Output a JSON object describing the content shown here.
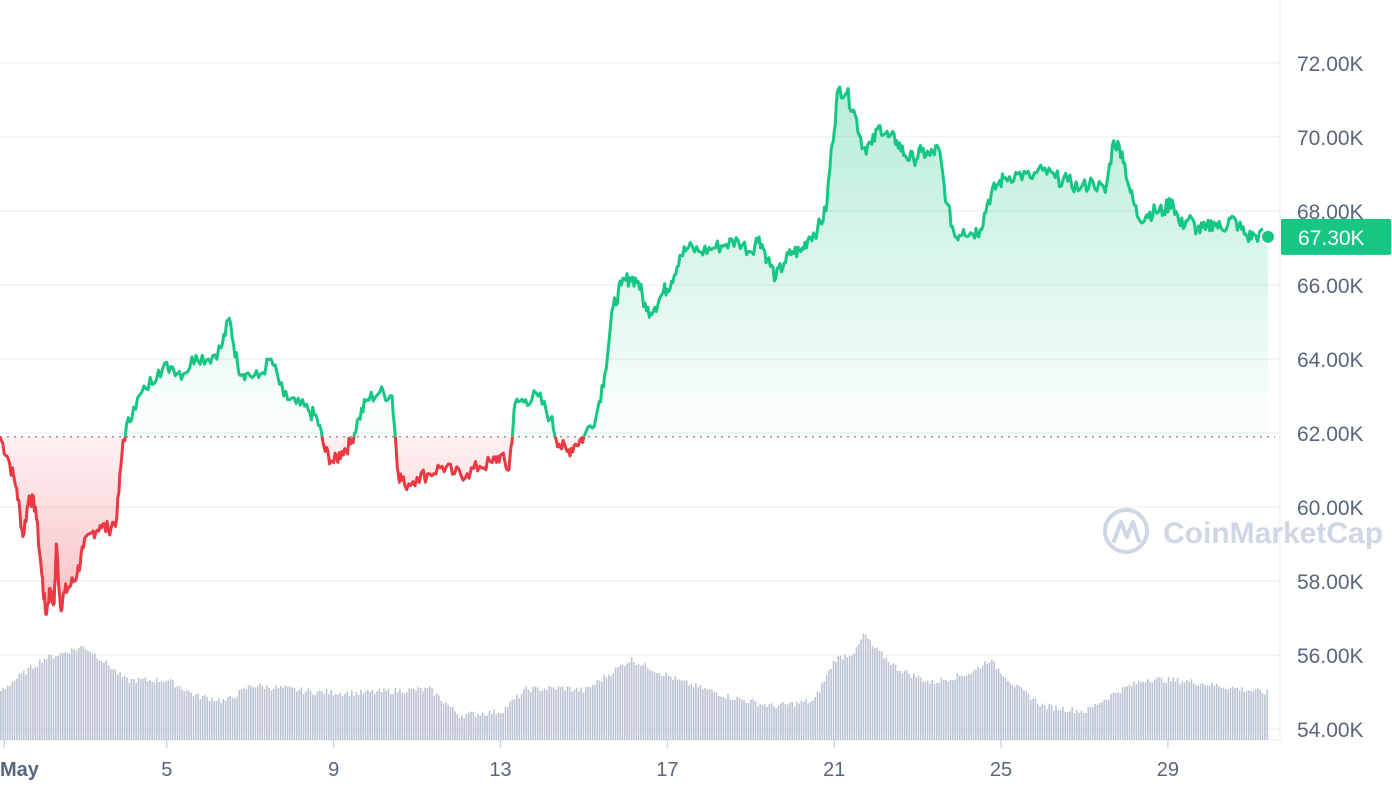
{
  "chart_data": {
    "type": "area",
    "baseline": 61900,
    "current_label": "67.30K",
    "watermark": "CoinMarketCap",
    "colors": {
      "up": "#16c784",
      "down": "#ea3943",
      "volume": "#bcc4d4",
      "grid": "#eff2f5"
    },
    "ylim": [
      52300,
      73700
    ],
    "xlim": [
      1,
      31.4
    ],
    "yticks": [
      {
        "value": 54000,
        "label": "54.00K"
      },
      {
        "value": 56000,
        "label": "56.00K"
      },
      {
        "value": 58000,
        "label": "58.00K"
      },
      {
        "value": 60000,
        "label": "60.00K"
      },
      {
        "value": 62000,
        "label": "62.00K"
      },
      {
        "value": 64000,
        "label": "64.00K"
      },
      {
        "value": 66000,
        "label": "66.00K"
      },
      {
        "value": 68000,
        "label": "68.00K"
      },
      {
        "value": 70000,
        "label": "70.00K"
      },
      {
        "value": 72000,
        "label": "72.00K"
      }
    ],
    "xticks": [
      {
        "value": 1.1,
        "label": "May"
      },
      {
        "value": 5,
        "label": "5"
      },
      {
        "value": 9,
        "label": "9"
      },
      {
        "value": 13,
        "label": "13"
      },
      {
        "value": 17,
        "label": "17"
      },
      {
        "value": 21,
        "label": "21"
      },
      {
        "value": 25,
        "label": "25"
      },
      {
        "value": 29,
        "label": "29"
      }
    ],
    "price": [
      [
        1.0,
        61900
      ],
      [
        1.2,
        61300
      ],
      [
        1.4,
        60500
      ],
      [
        1.55,
        59200
      ],
      [
        1.7,
        60300
      ],
      [
        1.85,
        60000
      ],
      [
        2.0,
        58200
      ],
      [
        2.1,
        57100
      ],
      [
        2.2,
        57800
      ],
      [
        2.3,
        57400
      ],
      [
        2.35,
        59000
      ],
      [
        2.45,
        57300
      ],
      [
        2.55,
        57700
      ],
      [
        2.7,
        57900
      ],
      [
        2.85,
        58200
      ],
      [
        3.0,
        58900
      ],
      [
        3.2,
        59300
      ],
      [
        3.4,
        59500
      ],
      [
        3.6,
        59400
      ],
      [
        3.8,
        59700
      ],
      [
        3.95,
        61800
      ],
      [
        4.2,
        62700
      ],
      [
        4.5,
        63200
      ],
      [
        4.8,
        63700
      ],
      [
        5.1,
        63800
      ],
      [
        5.4,
        63600
      ],
      [
        5.7,
        64100
      ],
      [
        6.0,
        64000
      ],
      [
        6.3,
        64300
      ],
      [
        6.5,
        65100
      ],
      [
        6.7,
        63800
      ],
      [
        6.9,
        63600
      ],
      [
        7.2,
        63500
      ],
      [
        7.5,
        64000
      ],
      [
        7.8,
        63000
      ],
      [
        8.1,
        62800
      ],
      [
        8.4,
        62600
      ],
      [
        8.6,
        62400
      ],
      [
        8.8,
        61500
      ],
      [
        9.0,
        61200
      ],
      [
        9.2,
        61500
      ],
      [
        9.4,
        61700
      ],
      [
        9.6,
        62400
      ],
      [
        9.8,
        62900
      ],
      [
        10.1,
        63100
      ],
      [
        10.4,
        63000
      ],
      [
        10.55,
        60900
      ],
      [
        10.7,
        60600
      ],
      [
        11.0,
        60800
      ],
      [
        11.3,
        60900
      ],
      [
        11.6,
        61100
      ],
      [
        11.9,
        60900
      ],
      [
        12.2,
        60900
      ],
      [
        12.5,
        61100
      ],
      [
        12.8,
        61200
      ],
      [
        13.0,
        61400
      ],
      [
        13.2,
        61000
      ],
      [
        13.35,
        62800
      ],
      [
        13.6,
        62900
      ],
      [
        13.9,
        63000
      ],
      [
        14.2,
        62400
      ],
      [
        14.4,
        61700
      ],
      [
        14.6,
        61500
      ],
      [
        14.8,
        61700
      ],
      [
        15.0,
        61900
      ],
      [
        15.3,
        62500
      ],
      [
        15.5,
        63600
      ],
      [
        15.7,
        65400
      ],
      [
        15.9,
        66000
      ],
      [
        16.1,
        66200
      ],
      [
        16.3,
        66100
      ],
      [
        16.5,
        65300
      ],
      [
        16.7,
        65400
      ],
      [
        16.9,
        65800
      ],
      [
        17.1,
        66100
      ],
      [
        17.3,
        66800
      ],
      [
        17.5,
        67000
      ],
      [
        17.8,
        66900
      ],
      [
        18.1,
        67000
      ],
      [
        18.4,
        67100
      ],
      [
        18.7,
        67200
      ],
      [
        19.0,
        66900
      ],
      [
        19.2,
        67300
      ],
      [
        19.4,
        66700
      ],
      [
        19.6,
        66200
      ],
      [
        19.8,
        66600
      ],
      [
        20.0,
        66900
      ],
      [
        20.2,
        66900
      ],
      [
        20.4,
        67300
      ],
      [
        20.6,
        67500
      ],
      [
        20.8,
        68000
      ],
      [
        20.95,
        69800
      ],
      [
        21.1,
        71300
      ],
      [
        21.3,
        71200
      ],
      [
        21.5,
        70600
      ],
      [
        21.7,
        69700
      ],
      [
        21.9,
        69800
      ],
      [
        22.1,
        70300
      ],
      [
        22.3,
        70000
      ],
      [
        22.5,
        69900
      ],
      [
        22.7,
        69500
      ],
      [
        22.9,
        69400
      ],
      [
        23.1,
        69600
      ],
      [
        23.3,
        69500
      ],
      [
        23.5,
        69700
      ],
      [
        23.7,
        68200
      ],
      [
        23.9,
        67300
      ],
      [
        24.1,
        67500
      ],
      [
        24.3,
        67400
      ],
      [
        24.5,
        67500
      ],
      [
        24.7,
        68300
      ],
      [
        24.9,
        68700
      ],
      [
        25.1,
        68900
      ],
      [
        25.4,
        69000
      ],
      [
        25.7,
        68900
      ],
      [
        26.0,
        69100
      ],
      [
        26.3,
        68900
      ],
      [
        26.6,
        68800
      ],
      [
        26.9,
        68600
      ],
      [
        27.2,
        68800
      ],
      [
        27.5,
        68500
      ],
      [
        27.7,
        69900
      ],
      [
        27.9,
        69600
      ],
      [
        28.1,
        68500
      ],
      [
        28.3,
        67800
      ],
      [
        28.5,
        67900
      ],
      [
        28.7,
        68000
      ],
      [
        28.9,
        68000
      ],
      [
        29.1,
        68300
      ],
      [
        29.3,
        67600
      ],
      [
        29.5,
        67800
      ],
      [
        29.7,
        67500
      ],
      [
        29.9,
        67500
      ],
      [
        30.1,
        67700
      ],
      [
        30.3,
        67500
      ],
      [
        30.5,
        67800
      ],
      [
        30.7,
        67600
      ],
      [
        30.9,
        67300
      ],
      [
        31.1,
        67350
      ],
      [
        31.4,
        67300
      ]
    ],
    "volume_index": [
      [
        1.0,
        0.38
      ],
      [
        2.0,
        0.62
      ],
      [
        3.0,
        0.72
      ],
      [
        3.5,
        0.6
      ],
      [
        4.0,
        0.46
      ],
      [
        5.0,
        0.46
      ],
      [
        5.7,
        0.34
      ],
      [
        6.4,
        0.3
      ],
      [
        7.0,
        0.42
      ],
      [
        7.7,
        0.4
      ],
      [
        8.5,
        0.37
      ],
      [
        9.5,
        0.36
      ],
      [
        10.5,
        0.38
      ],
      [
        11.3,
        0.39
      ],
      [
        12.0,
        0.19
      ],
      [
        13.0,
        0.22
      ],
      [
        13.6,
        0.39
      ],
      [
        14.5,
        0.4
      ],
      [
        15.0,
        0.38
      ],
      [
        16.1,
        0.62
      ],
      [
        16.6,
        0.55
      ],
      [
        17.3,
        0.45
      ],
      [
        18.5,
        0.33
      ],
      [
        19.5,
        0.26
      ],
      [
        20.5,
        0.3
      ],
      [
        21.0,
        0.62
      ],
      [
        21.5,
        0.68
      ],
      [
        21.7,
        0.82
      ],
      [
        21.9,
        0.72
      ],
      [
        22.5,
        0.55
      ],
      [
        23.3,
        0.44
      ],
      [
        24.3,
        0.52
      ],
      [
        24.7,
        0.62
      ],
      [
        25.3,
        0.42
      ],
      [
        26.0,
        0.26
      ],
      [
        27.0,
        0.22
      ],
      [
        27.8,
        0.38
      ],
      [
        28.5,
        0.47
      ],
      [
        29.5,
        0.45
      ],
      [
        31.4,
        0.36
      ]
    ]
  }
}
